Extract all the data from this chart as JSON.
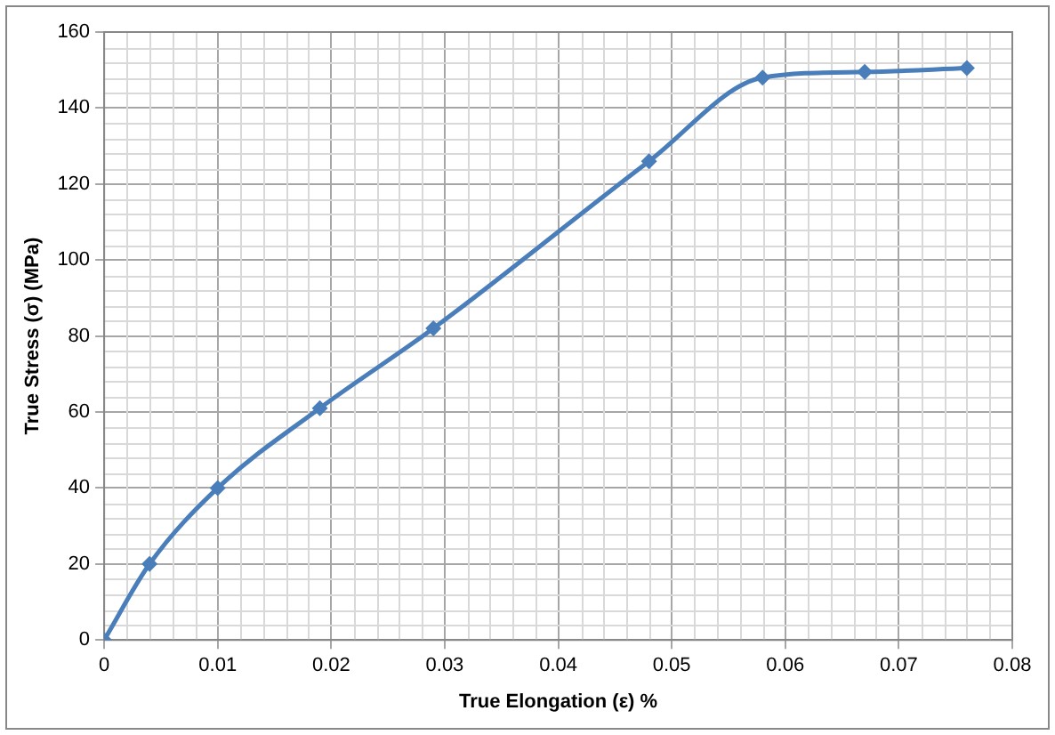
{
  "chart_data": {
    "type": "line",
    "xlabel": "True Elongation (ε) %",
    "ylabel": "True Stress (σ) (MPa)",
    "x": [
      0,
      0.004,
      0.01,
      0.019,
      0.029,
      0.048,
      0.058,
      0.067,
      0.076
    ],
    "series": [
      {
        "color": "#4a7ebb",
        "values": [
          0,
          20,
          40,
          61,
          82,
          126,
          148,
          149.5,
          150.5
        ]
      }
    ],
    "xlim": [
      0,
      0.08
    ],
    "xticks": [
      0,
      0.01,
      0.02,
      0.03,
      0.04,
      0.05,
      0.06,
      0.07,
      0.08
    ],
    "ylim": [
      0,
      160
    ],
    "yticks": [
      0,
      20,
      40,
      60,
      80,
      100,
      120,
      140,
      160
    ],
    "grid": true,
    "legend": false,
    "marker": "diamond",
    "line_style": "solid"
  }
}
